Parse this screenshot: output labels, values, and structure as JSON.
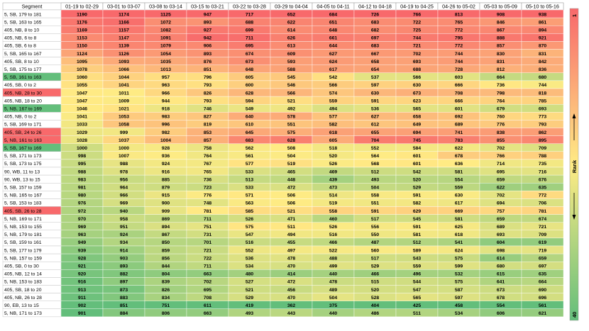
{
  "chart_data": {
    "type": "heatmap",
    "corner_label": "Segment",
    "columns": [
      "01-19 to 02-29",
      "03-01 to 03-07",
      "03-08 to 03-14",
      "03-15 to 03-21",
      "03-22 to 03-28",
      "03-29 to 04-04",
      "04-05 to 04-11",
      "04-12 to 04-18",
      "04-19 to 04-25",
      "04-26 to 05-02",
      "05-03 to 05-09",
      "05-10 to 05-16"
    ],
    "rows": [
      {
        "segment": "5, SB, 179 to 181",
        "values": [
          1190,
          1174,
          1125,
          947,
          717,
          652,
          684,
          726,
          766,
          813,
          908,
          938
        ]
      },
      {
        "segment": "5, SB, 163 to 165",
        "values": [
          1176,
          1166,
          1072,
          893,
          688,
          622,
          651,
          683,
          722,
          765,
          846,
          861
        ]
      },
      {
        "segment": "405, NB, 8 to 10",
        "values": [
          1169,
          1157,
          1082,
          927,
          699,
          614,
          648,
          682,
          725,
          772,
          867,
          894
        ]
      },
      {
        "segment": "405, NB, 6 to 8",
        "values": [
          1153,
          1147,
          1091,
          942,
          711,
          626,
          661,
          697,
          744,
          795,
          888,
          921
        ]
      },
      {
        "segment": "405, SB, 6 to 8",
        "values": [
          1150,
          1139,
          1079,
          906,
          695,
          613,
          644,
          683,
          721,
          772,
          857,
          870
        ]
      },
      {
        "segment": "5, SB, 165 to 167",
        "values": [
          1124,
          1126,
          1054,
          893,
          674,
          609,
          627,
          667,
          702,
          744,
          830,
          831
        ]
      },
      {
        "segment": "405, SB, 8 to 10",
        "values": [
          1095,
          1093,
          1035,
          876,
          673,
          593,
          624,
          658,
          693,
          744,
          831,
          842
        ]
      },
      {
        "segment": "5, SB, 175 to 177",
        "values": [
          1078,
          1066,
          1013,
          851,
          648,
          588,
          617,
          654,
          688,
          728,
          812,
          836
        ]
      },
      {
        "segment": "5, SB, 161 to 163",
        "values": [
          1060,
          1044,
          957,
          796,
          605,
          545,
          542,
          537,
          566,
          603,
          664,
          680
        ],
        "seg_highlight": "green"
      },
      {
        "segment": "405, SB, 0 to 2",
        "values": [
          1055,
          1041,
          963,
          793,
          600,
          546,
          566,
          597,
          630,
          666,
          736,
          744
        ]
      },
      {
        "segment": "405, NB, 28 to 30",
        "values": [
          1047,
          1011,
          966,
          826,
          628,
          566,
          574,
          630,
          673,
          708,
          798,
          818
        ],
        "seg_highlight": "red"
      },
      {
        "segment": "405, NB, 18 to 20",
        "values": [
          1047,
          1009,
          944,
          793,
          594,
          521,
          559,
          591,
          623,
          666,
          764,
          785
        ]
      },
      {
        "segment": "5, NB, 167 to 169",
        "values": [
          1046,
          1021,
          918,
          746,
          549,
          492,
          494,
          536,
          565,
          601,
          679,
          693
        ],
        "seg_highlight": "green"
      },
      {
        "segment": "405, NB, 0 to 2",
        "values": [
          1041,
          1053,
          983,
          827,
          640,
          578,
          577,
          627,
          658,
          692,
          760,
          773
        ]
      },
      {
        "segment": "5, SB, 169 to 171",
        "values": [
          1033,
          1058,
          996,
          819,
          610,
          551,
          582,
          612,
          649,
          689,
          776,
          793
        ]
      },
      {
        "segment": "405, SB, 24 to 26",
        "values": [
          1029,
          999,
          982,
          853,
          645,
          575,
          618,
          655,
          694,
          741,
          838,
          862
        ],
        "seg_highlight": "red"
      },
      {
        "segment": "5, NB, 161 to 163",
        "values": [
          1028,
          1037,
          1004,
          857,
          683,
          628,
          605,
          704,
          745,
          783,
          855,
          895
        ],
        "seg_highlight": "red"
      },
      {
        "segment": "5, SB, 167 to 169",
        "values": [
          1000,
          1000,
          928,
          758,
          562,
          508,
          518,
          552,
          584,
          622,
          702,
          709
        ],
        "seg_highlight": "green"
      },
      {
        "segment": "5, SB, 171 to 173",
        "values": [
          998,
          1007,
          936,
          764,
          561,
          504,
          520,
          564,
          601,
          678,
          766,
          788
        ]
      },
      {
        "segment": "5, SB, 173 to 175",
        "values": [
          995,
          988,
          924,
          767,
          577,
          519,
          526,
          568,
          601,
          636,
          714,
          735
        ]
      },
      {
        "segment": "90, WB, 11 to 13",
        "values": [
          988,
          978,
          916,
          765,
          533,
          465,
          469,
          512,
          542,
          581,
          695,
          716
        ]
      },
      {
        "segment": "90, WB, 13 to 15",
        "values": [
          983,
          956,
          885,
          736,
          513,
          448,
          439,
          493,
          520,
          554,
          659,
          676
        ]
      },
      {
        "segment": "5, SB, 157 to 159",
        "values": [
          981,
          964,
          879,
          723,
          533,
          472,
          473,
          504,
          529,
          559,
          622,
          635
        ]
      },
      {
        "segment": "5, NB, 165 to 167",
        "values": [
          980,
          966,
          915,
          776,
          571,
          506,
          514,
          558,
          591,
          630,
          702,
          772
        ]
      },
      {
        "segment": "5, SB, 153 to 183",
        "values": [
          976,
          969,
          900,
          748,
          563,
          506,
          519,
          551,
          582,
          617,
          694,
          706
        ]
      },
      {
        "segment": "405, SB, 26 to 28",
        "values": [
          972,
          940,
          909,
          781,
          585,
          521,
          558,
          591,
          629,
          669,
          757,
          781
        ],
        "seg_highlight": "red"
      },
      {
        "segment": "5, NB, 169 to 171",
        "values": [
          970,
          958,
          869,
          711,
          526,
          471,
          460,
          517,
          545,
          581,
          659,
          674
        ]
      },
      {
        "segment": "5, NB, 153 to 155",
        "values": [
          969,
          951,
          894,
          751,
          575,
          511,
          526,
          556,
          591,
          625,
          689,
          721
        ]
      },
      {
        "segment": "5, NB, 179 to 181",
        "values": [
          963,
          924,
          867,
          731,
          547,
          494,
          516,
          550,
          581,
          618,
          693,
          709
        ]
      },
      {
        "segment": "5, SB, 159 to 161",
        "values": [
          949,
          934,
          850,
          701,
          516,
          455,
          466,
          487,
          512,
          541,
          604,
          619
        ]
      },
      {
        "segment": "5, SB, 177 to 179",
        "values": [
          939,
          914,
          859,
          721,
          552,
          497,
          522,
          560,
          589,
          624,
          698,
          719
        ]
      },
      {
        "segment": "5, NB, 157 to 159",
        "values": [
          928,
          903,
          856,
          722,
          536,
          478,
          488,
          517,
          543,
          575,
          614,
          659
        ]
      },
      {
        "segment": "405, SB, 0 to 30",
        "values": [
          921,
          893,
          844,
          711,
          534,
          470,
          499,
          529,
          559,
          599,
          680,
          697
        ]
      },
      {
        "segment": "405, NB, 12 to 14",
        "values": [
          920,
          882,
          804,
          663,
          480,
          414,
          440,
          466,
          496,
          532,
          615,
          635
        ]
      },
      {
        "segment": "5, NB, 153 to 183",
        "values": [
          916,
          897,
          839,
          702,
          527,
          472,
          478,
          515,
          544,
          575,
          641,
          664
        ]
      },
      {
        "segment": "405, SB, 18 to 20",
        "values": [
          913,
          873,
          826,
          695,
          521,
          456,
          489,
          520,
          547,
          587,
          673,
          690
        ]
      },
      {
        "segment": "405, NB, 26 to 28",
        "values": [
          911,
          883,
          834,
          708,
          529,
          470,
          504,
          528,
          565,
          597,
          678,
          696
        ]
      },
      {
        "segment": "90, EB, 13 to 15",
        "values": [
          902,
          851,
          751,
          611,
          419,
          362,
          375,
          404,
          425,
          458,
          554,
          561
        ]
      },
      {
        "segment": "5, NB, 171 to 173",
        "values": [
          901,
          884,
          806,
          663,
          493,
          443,
          440,
          486,
          511,
          534,
          606,
          621
        ]
      }
    ],
    "legend": {
      "title": "Rank",
      "top_label": "1",
      "bottom_label": "40",
      "position": "right",
      "colors": {
        "high": "#f8696b",
        "mid": "#ffeb84",
        "low": "#63be7b"
      }
    },
    "segment_highlight_colors": {
      "red": "#f8696b",
      "green": "#63be7b"
    }
  }
}
